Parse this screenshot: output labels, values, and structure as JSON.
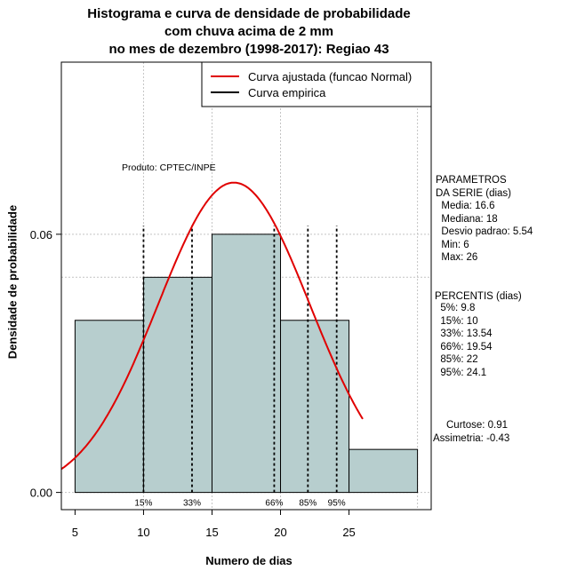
{
  "chart_data": {
    "type": "bar",
    "title_lines": [
      "Histograma e curva de densidade de probabilidade",
      "com chuva acima de 2 mm",
      "no mes de dezembro (1998-2017): Regiao 43"
    ],
    "xlabel": "Numero de dias",
    "ylabel": "Densidade de probabilidade",
    "xlim": [
      4,
      31
    ],
    "ylim": [
      -0.004,
      0.1
    ],
    "x_ticks": [
      5,
      10,
      15,
      20,
      25
    ],
    "y_ticks": [
      0.0,
      0.06
    ],
    "y_tick_labels": [
      "0.00",
      "0.06"
    ],
    "grid_x": [
      10,
      15,
      20,
      30
    ],
    "grid_y": [
      0.05,
      0.1
    ],
    "bins": [
      {
        "x0": 5,
        "x1": 10,
        "density": 0.04
      },
      {
        "x0": 10,
        "x1": 15,
        "density": 0.05
      },
      {
        "x0": 15,
        "x1": 20,
        "density": 0.06
      },
      {
        "x0": 20,
        "x1": 25,
        "density": 0.04
      },
      {
        "x0": 25,
        "x1": 30,
        "density": 0.01
      }
    ],
    "normal_curve": {
      "mean": 16.6,
      "sd": 5.54,
      "x_from": 4,
      "x_to": 26
    },
    "percentile_lines": [
      {
        "label": "15%",
        "x": 10
      },
      {
        "label": "33%",
        "x": 13.54
      },
      {
        "label": "66%",
        "x": 19.54
      },
      {
        "label": "85%",
        "x": 22
      },
      {
        "label": "95%",
        "x": 24.1
      }
    ],
    "legend": [
      {
        "label": "Curva ajustada (funcao Normal)",
        "color": "#e00000"
      },
      {
        "label": "Curva empirica",
        "color": "#000000"
      }
    ],
    "annotation": "Produto: CPTEC/INPE",
    "colors": {
      "bar": "#b7cece",
      "curve": "#e00000"
    }
  },
  "side_panel": {
    "params_title": "PARAMETROS\nDA SERIE (dias)",
    "params": "  Media: 16.6\n  Mediana: 18\n  Desvio padrao: 5.54\n  Min: 6\n  Max: 26",
    "percentis_title": "PERCENTIS (dias)",
    "percentis": "  5%: 9.8\n  15%: 10\n  33%: 13.54\n  66%: 19.54\n  85%: 22\n  95%: 24.1",
    "curtose": "Curtose: 0.91",
    "assimetria": "Assimetria: -0.43"
  }
}
